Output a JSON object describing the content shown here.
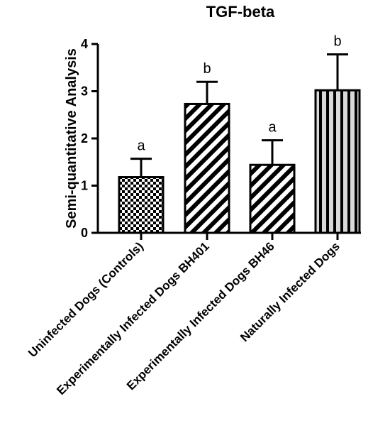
{
  "chart_data": {
    "type": "bar",
    "title": "TGF-beta",
    "xlabel": "",
    "ylabel": "Semi-quantitative Analysis",
    "ylim": [
      0,
      4
    ],
    "yticks": [
      "0",
      "1",
      "2",
      "3",
      "4"
    ],
    "categories": [
      "Uninfected Dogs (Controls)",
      "Experimentally Infected Dogs BH401",
      "Experimentally Infected Dogs BH46",
      "Naturally Infected Dogs"
    ],
    "values": [
      1.18,
      2.73,
      1.44,
      3.02
    ],
    "errors": [
      0.39,
      0.47,
      0.52,
      0.76
    ],
    "significance_letters": [
      "a",
      "b",
      "a",
      "b"
    ],
    "bar_patterns": [
      "checkerboard",
      "diagonal-stripes",
      "diagonal-stripes",
      "vertical-stripes"
    ],
    "grid": false,
    "legend": "none",
    "colors": {
      "ink": "#000000",
      "background": "#ffffff",
      "stripe_light": "#d9d9d9"
    }
  }
}
